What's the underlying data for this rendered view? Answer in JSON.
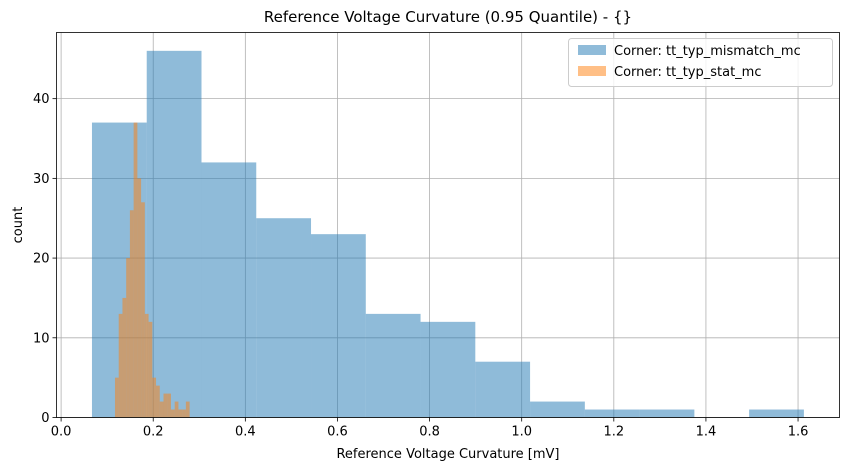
{
  "chart_data": {
    "type": "bar",
    "title": "Reference Voltage Curvature (0.95 Quantile) - {}",
    "xlabel": "Reference Voltage Curvature [mV]",
    "ylabel": "count",
    "xlim": [
      -0.01,
      1.69
    ],
    "ylim": [
      0,
      48.3
    ],
    "xticks": [
      0.0,
      0.2,
      0.4,
      0.6,
      0.8,
      1.0,
      1.2,
      1.4,
      1.6
    ],
    "xtick_labels": [
      "0.0",
      "0.2",
      "0.4",
      "0.6",
      "0.8",
      "1.0",
      "1.2",
      "1.4",
      "1.6"
    ],
    "yticks": [
      0,
      10,
      20,
      30,
      40
    ],
    "ytick_labels": [
      "0",
      "10",
      "20",
      "30",
      "40"
    ],
    "grid": true,
    "legend_position": "top-right",
    "series": [
      {
        "name": "Corner: tt_typ_mismatch_mc",
        "color": "#1f77b4",
        "opacity": 0.5,
        "bin_edges": [
          0.067,
          0.1859,
          0.3048,
          0.4237,
          0.5426,
          0.6615,
          0.7804,
          0.8993,
          1.0182,
          1.1371,
          1.256,
          1.3749,
          1.4938,
          1.6127
        ],
        "counts": [
          37,
          46,
          32,
          25,
          23,
          13,
          12,
          7,
          2,
          1,
          1,
          0,
          1
        ]
      },
      {
        "name": "Corner: tt_typ_stat_mc",
        "color": "#ff7f0e",
        "opacity": 0.5,
        "bin_edges": [
          0.117,
          0.1251,
          0.1332,
          0.1413,
          0.1494,
          0.1575,
          0.1656,
          0.1737,
          0.1818,
          0.1899,
          0.198,
          0.2061,
          0.2142,
          0.2223,
          0.2304,
          0.2385,
          0.2466,
          0.2547,
          0.2628,
          0.2709,
          0.279
        ],
        "counts": [
          5,
          13,
          15,
          20,
          26,
          37,
          30,
          27,
          13,
          12,
          5,
          4,
          2,
          3,
          3,
          1,
          2,
          1,
          1,
          2
        ]
      }
    ]
  }
}
